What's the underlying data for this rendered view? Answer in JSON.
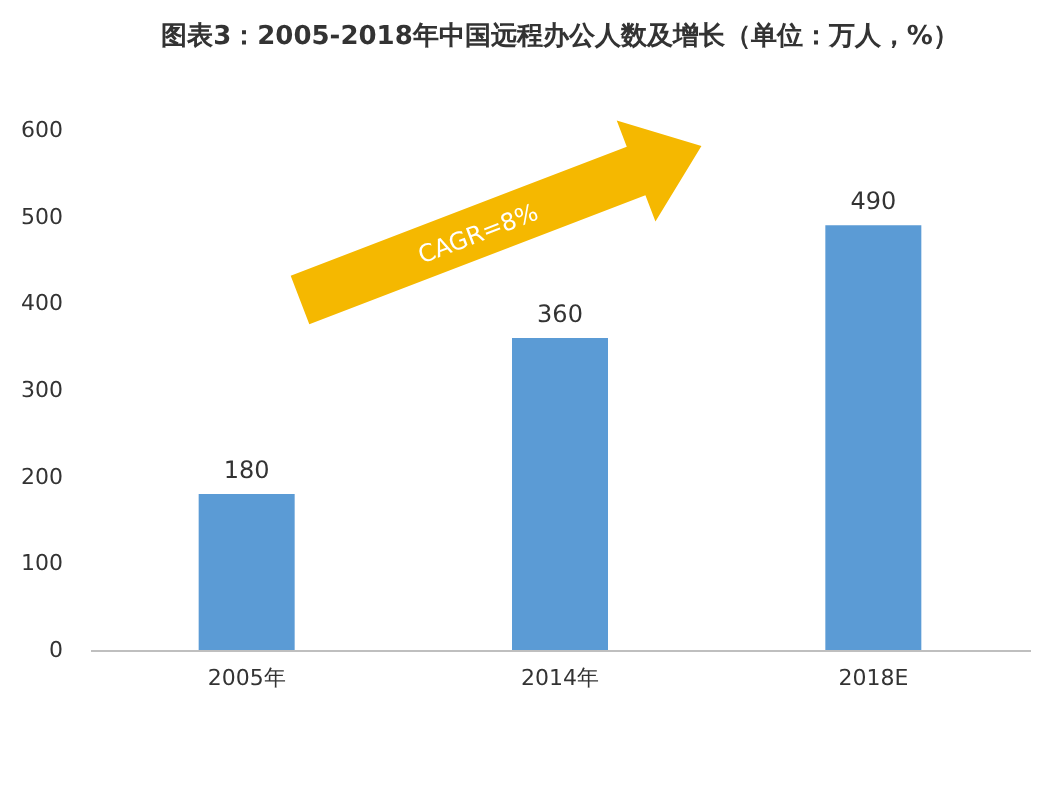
{
  "chart_data": {
    "type": "bar",
    "title": "图表3：2005-2018年中国远程办公人数及增长（单位：万人，%）",
    "categories": [
      "2005年",
      "2014年",
      "2018E"
    ],
    "values": [
      180,
      360,
      490
    ],
    "color": "#5b9bd5",
    "ylim": [
      0,
      600
    ],
    "yticks": [
      0,
      100,
      200,
      300,
      400,
      500,
      600
    ],
    "grid": false,
    "data_labels": true,
    "annotations": [
      "CAGR=8%"
    ]
  }
}
